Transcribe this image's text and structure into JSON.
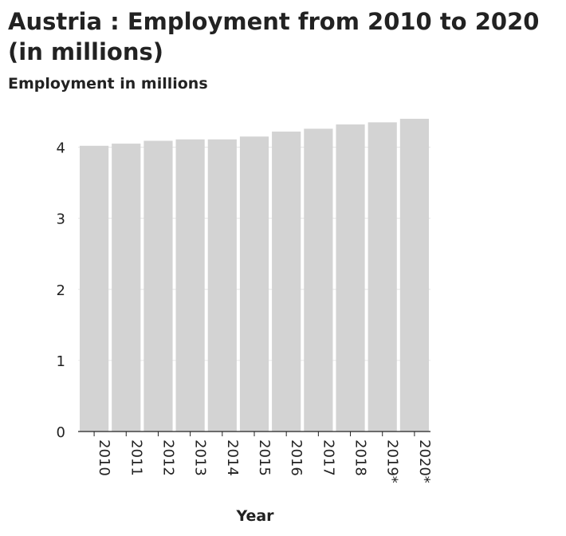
{
  "chart_data": {
    "type": "bar",
    "title": "Austria : Employment from 2010 to 2020 (in millions)",
    "xlabel": "Year",
    "ylabel": "Employment in millions",
    "categories": [
      "2010",
      "2011",
      "2012",
      "2013",
      "2014",
      "2015",
      "2016",
      "2017",
      "2018",
      "2019*",
      "2020*"
    ],
    "values": [
      4.02,
      4.05,
      4.09,
      4.11,
      4.11,
      4.15,
      4.22,
      4.26,
      4.32,
      4.35,
      4.4
    ],
    "ylim": [
      0,
      4.5
    ],
    "yticks": [
      0,
      1,
      2,
      3,
      4
    ],
    "grid": true,
    "bar_color": "#d3d3d3",
    "grid_color": "#e6e6e6"
  }
}
